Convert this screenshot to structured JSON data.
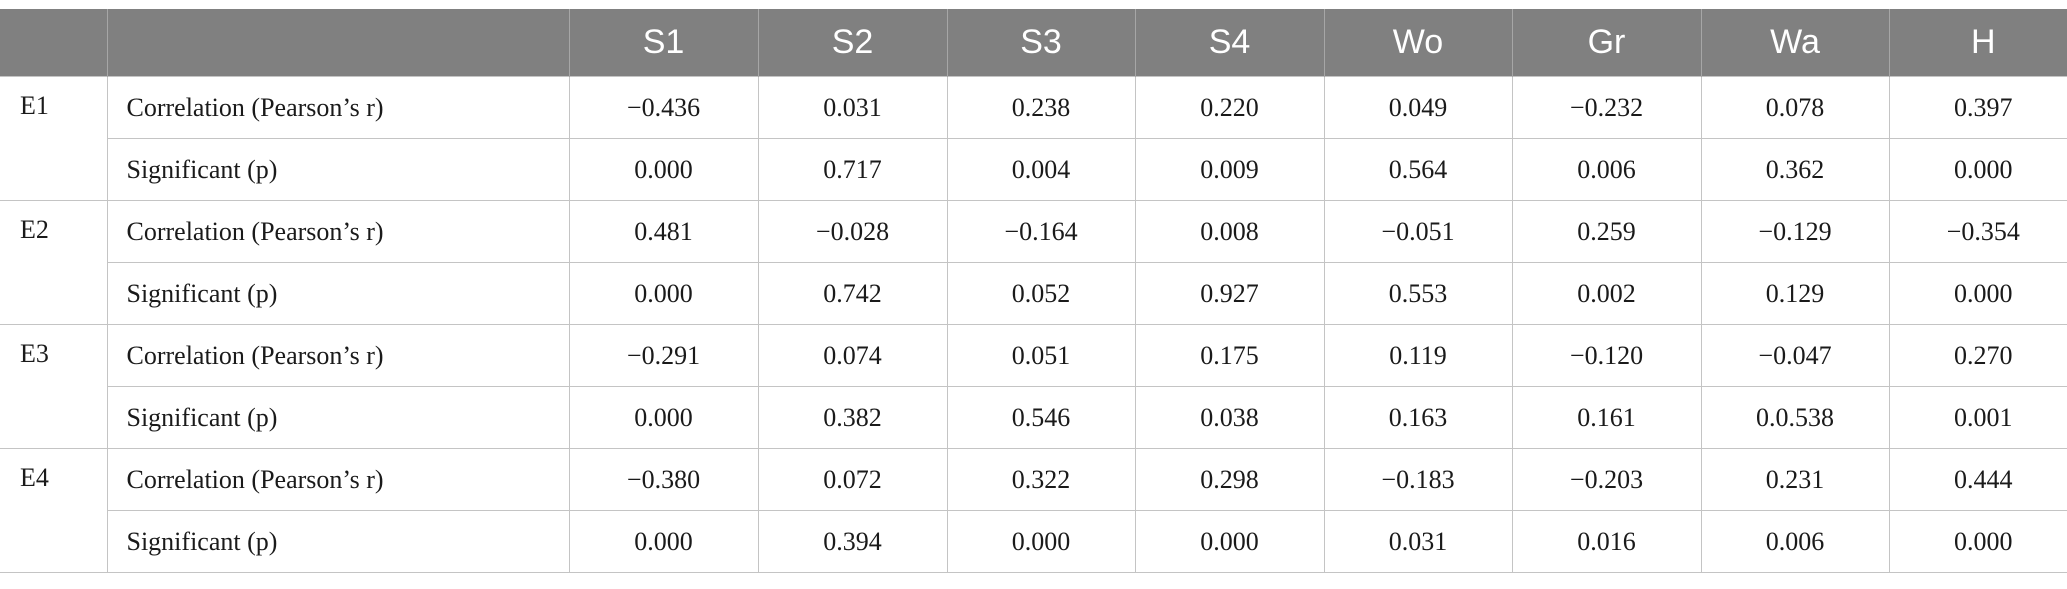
{
  "table": {
    "columns": [
      "",
      "",
      "S1",
      "S2",
      "S3",
      "S4",
      "Wo",
      "Gr",
      "Wa",
      "H"
    ],
    "groups": [
      {
        "name": "E1",
        "rows": [
          {
            "label": "Correlation (Pearson’s r)",
            "values": [
              "−0.436",
              "0.031",
              "0.238",
              "0.220",
              "0.049",
              "−0.232",
              "0.078",
              "0.397"
            ]
          },
          {
            "label": "Significant (p)",
            "values": [
              "0.000",
              "0.717",
              "0.004",
              "0.009",
              "0.564",
              "0.006",
              "0.362",
              "0.000"
            ]
          }
        ]
      },
      {
        "name": "E2",
        "rows": [
          {
            "label": "Correlation (Pearson’s r)",
            "values": [
              "0.481",
              "−0.028",
              "−0.164",
              "0.008",
              "−0.051",
              "0.259",
              "−0.129",
              "−0.354"
            ]
          },
          {
            "label": "Significant (p)",
            "values": [
              "0.000",
              "0.742",
              "0.052",
              "0.927",
              "0.553",
              "0.002",
              "0.129",
              "0.000"
            ]
          }
        ]
      },
      {
        "name": "E3",
        "rows": [
          {
            "label": "Correlation (Pearson’s r)",
            "values": [
              "−0.291",
              "0.074",
              "0.051",
              "0.175",
              "0.119",
              "−0.120",
              "−0.047",
              "0.270"
            ]
          },
          {
            "label": "Significant (p)",
            "values": [
              "0.000",
              "0.382",
              "0.546",
              "0.038",
              "0.163",
              "0.161",
              "0.0.538",
              "0.001"
            ]
          }
        ]
      },
      {
        "name": "E4",
        "rows": [
          {
            "label": "Correlation (Pearson’s r)",
            "values": [
              "−0.380",
              "0.072",
              "0.322",
              "0.298",
              "−0.183",
              "−0.203",
              "0.231",
              "0.444"
            ]
          },
          {
            "label": "Significant (p)",
            "values": [
              "0.000",
              "0.394",
              "0.000",
              "0.000",
              "0.031",
              "0.016",
              "0.006",
              "0.000"
            ]
          }
        ]
      }
    ]
  }
}
